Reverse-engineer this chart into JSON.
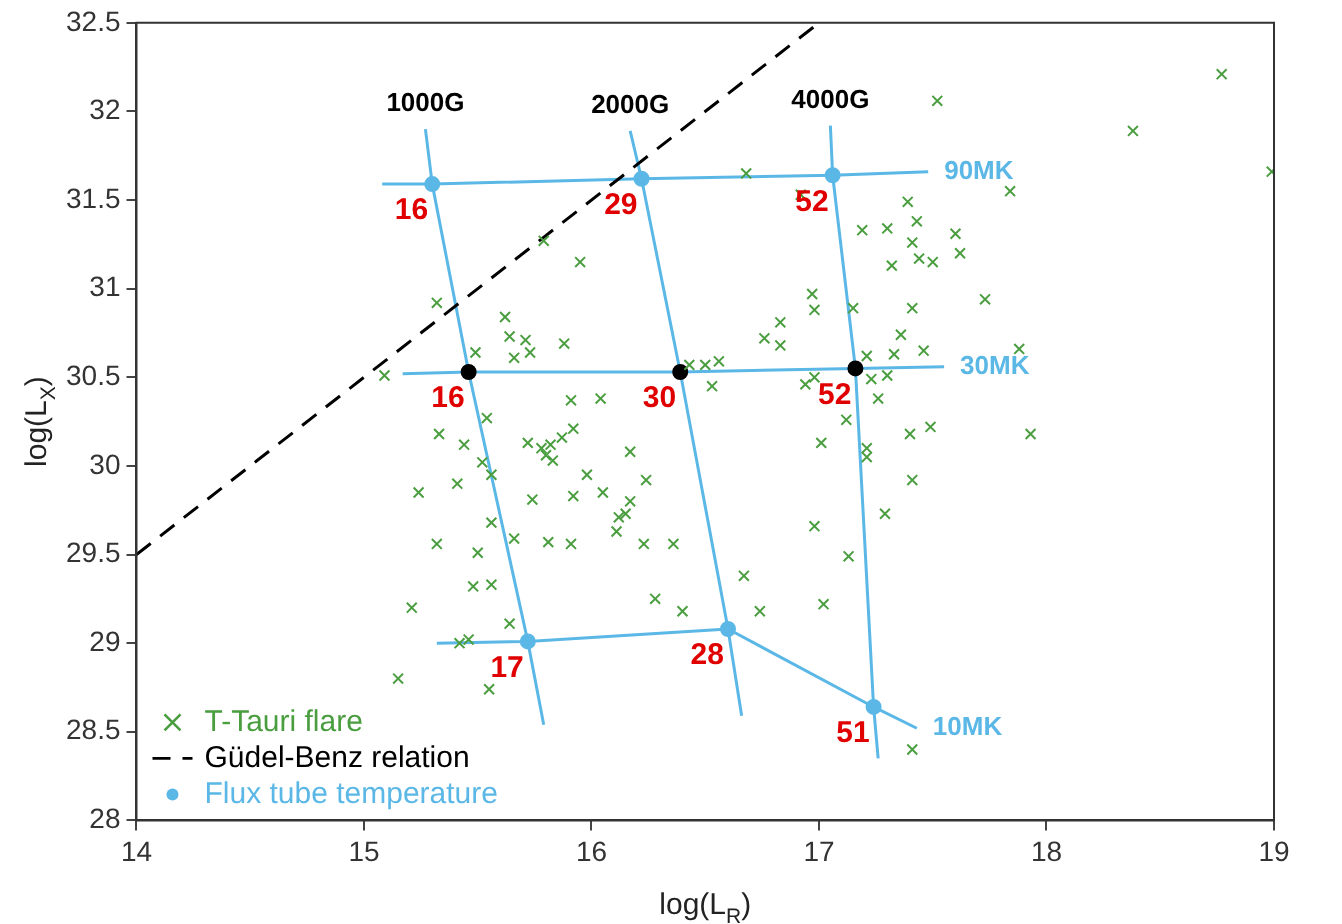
{
  "chart_data": {
    "type": "scatter",
    "xlabel": "log(L$_{R}$)",
    "ylabel": "log(L$_{X}$)",
    "xlim": [
      14,
      19
    ],
    "ylim": [
      28,
      32.5
    ],
    "xticks": [
      14,
      15,
      16,
      17,
      18,
      19
    ],
    "yticks": [
      28,
      28.5,
      29,
      29.5,
      30,
      30.5,
      31,
      31.5,
      32,
      32.5
    ],
    "grid": false,
    "legend": "bottom left",
    "annotations": [
      {
        "text": "16",
        "x": 15.3,
        "y": 31.59
      },
      {
        "text": "29",
        "x": 16.22,
        "y": 31.62
      },
      {
        "text": "52",
        "x": 17.06,
        "y": 31.64
      },
      {
        "text": "16",
        "x": 15.46,
        "y": 30.53
      },
      {
        "text": "30",
        "x": 16.39,
        "y": 30.53
      },
      {
        "text": "52",
        "x": 17.16,
        "y": 30.55
      },
      {
        "text": "17",
        "x": 15.72,
        "y": 29.01
      },
      {
        "text": "28",
        "x": 16.6,
        "y": 29.08
      },
      {
        "text": "51",
        "x": 17.24,
        "y": 28.64
      }
    ],
    "series": [
      {
        "name": "T-Tauri flare",
        "marker": "cross",
        "color": "#4a9e3f",
        "x": [
          15.79,
          15.95,
          15.32,
          15.62,
          15.64,
          15.71,
          15.66,
          15.73,
          15.88,
          15.49,
          15.09,
          16.43,
          16.5,
          16.56,
          16.53,
          15.91,
          16.04,
          15.54,
          15.33,
          15.44,
          15.52,
          15.56,
          15.72,
          15.78,
          15.82,
          15.8,
          15.83,
          15.87,
          15.92,
          16.17,
          15.98,
          15.92,
          16.05,
          16.24,
          16.17,
          16.15,
          16.12,
          16.11,
          15.24,
          15.41,
          15.74,
          15.56,
          15.66,
          15.81,
          15.91,
          16.23,
          16.36,
          15.32,
          15.5,
          15.48,
          15.56,
          15.21,
          16.28,
          16.4,
          15.64,
          15.42,
          15.46,
          15.15,
          15.55,
          16.67,
          18.77,
          18.38,
          18.99,
          17.52,
          16.68,
          17.84,
          16.92,
          17.39,
          17.43,
          17.19,
          17.3,
          17.41,
          17.44,
          17.5,
          17.32,
          17.6,
          17.62,
          17.73,
          16.97,
          16.98,
          17.15,
          17.41,
          16.83,
          16.76,
          16.83,
          17.36,
          17.21,
          17.33,
          17.46,
          17.88,
          16.94,
          16.98,
          17.23,
          17.3,
          17.26,
          17.01,
          17.12,
          17.21,
          17.4,
          17.49,
          17.93,
          17.21,
          17.41,
          17.29,
          16.98,
          17.13,
          17.02,
          16.74,
          17.41
        ],
        "values": [
          31.27,
          31.15,
          30.92,
          30.84,
          30.73,
          30.71,
          30.61,
          30.64,
          30.69,
          30.64,
          30.51,
          30.57,
          30.57,
          30.59,
          30.45,
          30.37,
          30.38,
          30.27,
          30.18,
          30.12,
          30.02,
          29.95,
          30.13,
          30.1,
          30.12,
          30.06,
          30.03,
          30.16,
          30.21,
          30.08,
          29.95,
          29.83,
          29.85,
          29.92,
          29.8,
          29.73,
          29.71,
          29.63,
          29.85,
          29.9,
          29.81,
          29.68,
          29.59,
          29.57,
          29.56,
          29.56,
          29.56,
          29.56,
          29.51,
          29.32,
          29.33,
          29.2,
          29.25,
          29.18,
          29.11,
          29,
          29.02,
          28.8,
          28.74,
          29.38,
          32.21,
          31.89,
          31.66,
          32.06,
          31.65,
          31.55,
          31.53,
          31.49,
          31.38,
          31.33,
          31.34,
          31.26,
          31.17,
          31.15,
          31.13,
          31.31,
          31.2,
          30.94,
          30.97,
          30.88,
          30.89,
          30.89,
          30.81,
          30.72,
          30.68,
          30.74,
          30.62,
          30.63,
          30.65,
          30.66,
          30.46,
          30.5,
          30.49,
          30.51,
          30.38,
          30.13,
          30.26,
          30.1,
          30.18,
          30.22,
          30.18,
          30.05,
          29.92,
          29.73,
          29.66,
          29.49,
          29.22,
          29.18,
          28.4
        ]
      },
      {
        "name": "Güdel-Benz relation",
        "type": "line",
        "line_style": "dashed",
        "marker": "none",
        "color": "#000000",
        "x": [
          14,
          17
        ],
        "values": [
          29.5,
          32.5
        ]
      },
      {
        "name": "Flux tube temperature",
        "marker": "circle",
        "color": "#5bb8e6",
        "x": [
          15.3,
          16.22,
          17.06,
          15.72,
          16.6,
          17.24
        ],
        "values": [
          31.59,
          31.62,
          31.64,
          29.01,
          29.08,
          28.64
        ]
      },
      {
        "marker": "circle",
        "color": "#000000",
        "x": [
          15.46,
          16.39,
          17.16
        ],
        "values": [
          30.53,
          30.53,
          30.55
        ]
      },
      {
        "name": "90MK",
        "type": "line",
        "marker": "none",
        "color": "#5bb8e6",
        "x": [
          15.08,
          15.3,
          16.22,
          17.06,
          17.48
        ],
        "values": [
          31.59,
          31.59,
          31.62,
          31.64,
          31.66
        ]
      },
      {
        "name": "30MK",
        "type": "line",
        "marker": "none",
        "color": "#5bb8e6",
        "x": [
          15.17,
          15.46,
          16.39,
          17.16,
          17.55
        ],
        "values": [
          30.52,
          30.53,
          30.53,
          30.55,
          30.56
        ]
      },
      {
        "name": "10MK",
        "type": "line",
        "marker": "none",
        "color": "#5bb8e6",
        "x": [
          15.32,
          15.72,
          16.6,
          17.24,
          17.43
        ],
        "values": [
          29.0,
          29.01,
          29.08,
          28.64,
          28.52
        ]
      },
      {
        "name": "1000G",
        "type": "line",
        "marker": "none",
        "color": "#5bb8e6",
        "x": [
          15.27,
          15.3,
          15.46,
          15.72,
          15.79
        ],
        "values": [
          31.9,
          31.59,
          30.53,
          29.01,
          28.54
        ]
      },
      {
        "name": "2000G",
        "type": "line",
        "marker": "none",
        "color": "#5bb8e6",
        "x": [
          16.17,
          16.22,
          16.39,
          16.6,
          16.66
        ],
        "values": [
          31.89,
          31.62,
          30.53,
          29.08,
          28.59
        ]
      },
      {
        "name": "4000G",
        "type": "line",
        "marker": "none",
        "color": "#5bb8e6",
        "x": [
          17.05,
          17.06,
          17.16,
          17.24,
          17.26
        ],
        "values": [
          31.92,
          31.64,
          30.55,
          28.64,
          28.35
        ]
      }
    ]
  }
}
